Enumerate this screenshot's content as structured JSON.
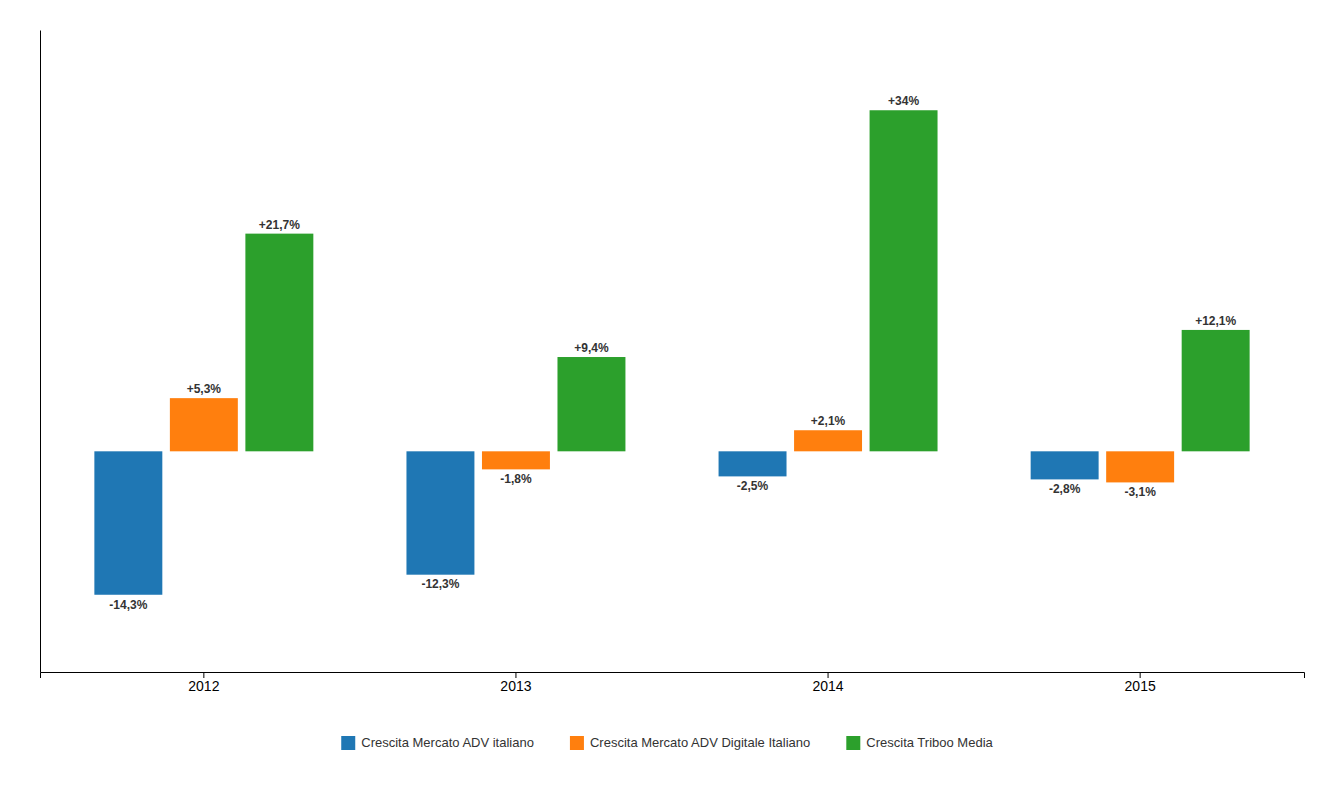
{
  "chart_data": {
    "type": "bar",
    "categories": [
      "2012",
      "2013",
      "2014",
      "2015"
    ],
    "series": [
      {
        "name": "Crescita Mercato ADV italiano",
        "values": [
          -14.3,
          -12.3,
          -2.5,
          -2.8
        ],
        "value_labels": [
          "-14,3%",
          "-12,3%",
          "-2,5%",
          "-2,8%"
        ]
      },
      {
        "name": "Crescita Mercato ADV Digitale Italiano",
        "values": [
          5.3,
          -1.8,
          2.1,
          -3.1
        ],
        "value_labels": [
          "+5,3%",
          "-1,8%",
          "+2,1%",
          "-3,1%"
        ]
      },
      {
        "name": "Crescita Triboo Media",
        "values": [
          21.7,
          9.4,
          34.0,
          12.1
        ],
        "value_labels": [
          "+21,7%",
          "+9,4%",
          "+34%",
          "+12,1%"
        ]
      }
    ],
    "ylim": [
      -22,
      42
    ],
    "data_labels": true,
    "tick_labels": "x",
    "legend": "bottom"
  }
}
